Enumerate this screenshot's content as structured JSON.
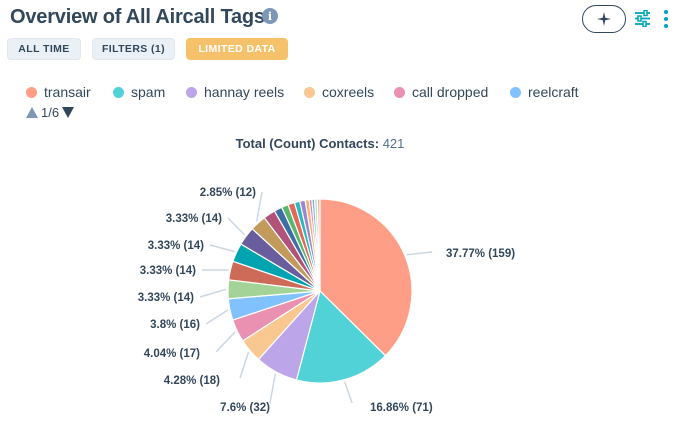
{
  "header": {
    "title": "Overview of All Aircall Tags",
    "info_icon": "info-icon",
    "ai_icon": "sparkle-icon",
    "filter_icon": "sliders-icon",
    "more_icon": "more-vertical-icon"
  },
  "pills": {
    "all_time": "ALL TIME",
    "filters": "FILTERS (1)",
    "limited": "LIMITED DATA"
  },
  "pager": {
    "text": "1/6"
  },
  "total": {
    "label": "Total (Count) Contacts:",
    "value": "421"
  },
  "colors": {
    "warning": "#f5c26b",
    "text": "#33475b"
  },
  "chart_data": {
    "type": "pie",
    "total": 421,
    "legend": [
      "transair",
      "spam",
      "hannay reels",
      "coxreels",
      "call dropped",
      "reelcraft"
    ],
    "legend_colors": [
      "#ff9e86",
      "#51d2d7",
      "#bca5e8",
      "#f9c891",
      "#ea90b1",
      "#81c1fd"
    ],
    "slices": [
      {
        "name": "transair",
        "value": 159,
        "label": "37.77% (159)",
        "color": "#ff9e86"
      },
      {
        "name": "spam",
        "value": 71,
        "label": "16.86% (71)",
        "color": "#51d2d7"
      },
      {
        "name": "hannay reels",
        "value": 32,
        "label": "7.6% (32)",
        "color": "#bca5e8"
      },
      {
        "name": "coxreels",
        "value": 18,
        "label": "4.28% (18)",
        "color": "#f9c891"
      },
      {
        "name": "call dropped",
        "value": 17,
        "label": "4.04% (17)",
        "color": "#ea90b1"
      },
      {
        "name": "reelcraft",
        "value": 16,
        "label": "3.8% (16)",
        "color": "#81c1fd"
      },
      {
        "value": 14,
        "label": "3.33% (14)",
        "color": "#a4d398"
      },
      {
        "value": 14,
        "label": "3.33% (14)",
        "color": "#cd6a58"
      },
      {
        "value": 14,
        "label": "3.33% (14)",
        "color": "#00a4b0"
      },
      {
        "value": 14,
        "label": "3.33% (14)",
        "color": "#6a5d9e"
      },
      {
        "value": 12,
        "label": "2.85% (12)",
        "color": "#c29a5b"
      },
      {
        "value": 9,
        "label": "",
        "color": "#b05279"
      },
      {
        "value": 6,
        "label": "",
        "color": "#3e6fa3"
      },
      {
        "value": 5,
        "label": "",
        "color": "#5ab56d"
      },
      {
        "value": 5,
        "label": "",
        "color": "#e06a5a"
      },
      {
        "value": 4,
        "label": "",
        "color": "#2fb6c1"
      },
      {
        "value": 4,
        "label": "",
        "color": "#9c86d4"
      },
      {
        "value": 3,
        "label": "",
        "color": "#f3b26e"
      },
      {
        "value": 2,
        "label": "",
        "color": "#e57fa5"
      },
      {
        "value": 2,
        "label": "",
        "color": "#6fb3f0"
      },
      {
        "value": 2,
        "label": "",
        "color": "#bfe0b5"
      },
      {
        "value": 2,
        "label": "",
        "color": "#f2b8a8"
      }
    ]
  }
}
